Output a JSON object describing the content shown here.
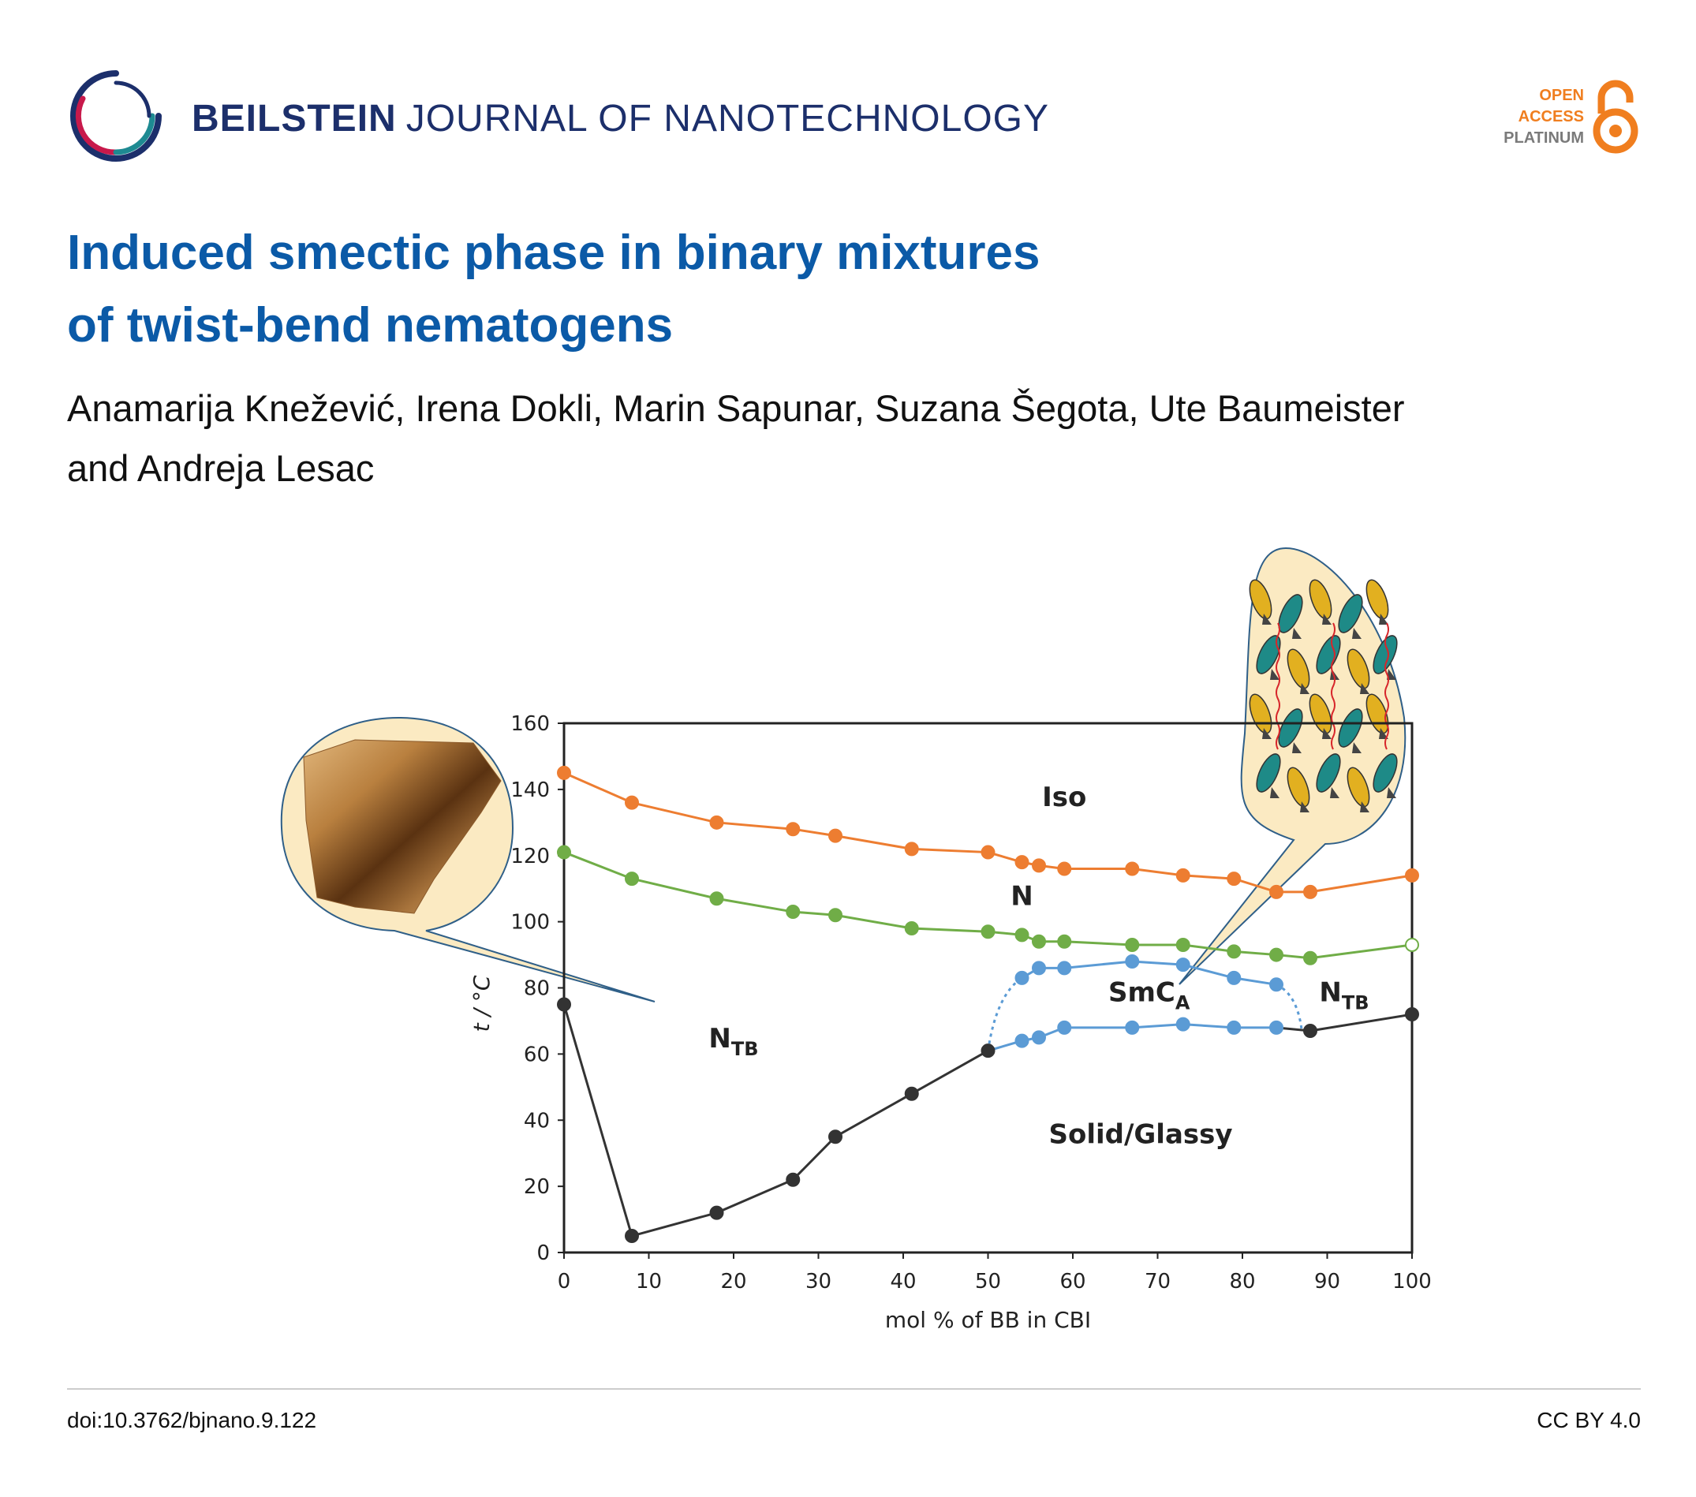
{
  "journal": {
    "name_strong": "BEILSTEIN",
    "name_light": "JOURNAL OF NANOTECHNOLOGY"
  },
  "open_access": {
    "line1": "OPEN",
    "line2": "ACCESS",
    "line3": "PLATINUM"
  },
  "article": {
    "title_line1": "Induced smectic phase in binary mixtures",
    "title_line2": "of twist-bend nematogens",
    "authors_line1": "Anamarija Knežević, Irena Dokli, Marin Sapunar, Suzana Šegota, Ute Baumeister",
    "authors_line2": "and Andreja Lesac"
  },
  "footer": {
    "doi": "doi:10.3762/bjnano.9.122",
    "license": "CC BY 4.0"
  },
  "colors": {
    "title": "#0b5aa7",
    "journal": "#1c2f6b",
    "oa_orange": "#f07e1f",
    "iso": "#ed7d31",
    "n": "#70ad47",
    "smca": "#5b9bd5",
    "solid": "#333333"
  },
  "chart_data": {
    "type": "line",
    "title": "",
    "xlabel": "mol % of BB in CBI",
    "ylabel": "t / °C",
    "xlim": [
      0,
      100
    ],
    "ylim": [
      0,
      160
    ],
    "xticks": [
      0,
      10,
      20,
      30,
      40,
      50,
      60,
      70,
      80,
      90,
      100
    ],
    "yticks": [
      0,
      20,
      40,
      60,
      80,
      100,
      120,
      140,
      160
    ],
    "series": [
      {
        "name": "Iso",
        "color": "#ed7d31",
        "x": [
          0,
          8,
          18,
          27,
          32,
          41,
          50,
          54,
          56,
          59,
          67,
          73,
          79,
          84,
          88,
          100
        ],
        "y": [
          145,
          136,
          130,
          128,
          126,
          122,
          121,
          118,
          117,
          116,
          116,
          114,
          113,
          109,
          109,
          114
        ]
      },
      {
        "name": "N",
        "color": "#70ad47",
        "x": [
          0,
          8,
          18,
          27,
          32,
          41,
          50,
          54,
          56,
          59,
          67,
          73,
          79,
          84,
          88,
          100
        ],
        "y": [
          121,
          113,
          107,
          103,
          102,
          98,
          97,
          96,
          94,
          94,
          93,
          93,
          91,
          90,
          89,
          93
        ]
      },
      {
        "name": "SmCA upper",
        "color": "#5b9bd5",
        "x": [
          54,
          56,
          59,
          67,
          73,
          79,
          84
        ],
        "y": [
          83,
          86,
          86,
          88,
          87,
          83,
          81
        ]
      },
      {
        "name": "SmCA lower",
        "color": "#5b9bd5",
        "x": [
          54,
          56,
          59,
          67,
          73,
          79,
          84
        ],
        "y": [
          64,
          65,
          68,
          68,
          69,
          68,
          68
        ]
      },
      {
        "name": "Solid/Glassy",
        "color": "#333333",
        "x": [
          0,
          8,
          18,
          27,
          32,
          41,
          50,
          88,
          100
        ],
        "y": [
          75,
          5,
          12,
          22,
          35,
          48,
          61,
          67,
          72
        ]
      }
    ],
    "region_labels": [
      {
        "text": "Iso",
        "x": 59,
        "y": 135
      },
      {
        "text": "N",
        "x": 54,
        "y": 105
      },
      {
        "text": "SmC",
        "sub": "A",
        "x": 69,
        "y": 76
      },
      {
        "text": "N",
        "sub": "TB",
        "x": 92,
        "y": 76
      },
      {
        "text": "N",
        "sub": "TB",
        "x": 20,
        "y": 62
      },
      {
        "text": "Solid/Glassy",
        "x": 68,
        "y": 33
      }
    ]
  }
}
